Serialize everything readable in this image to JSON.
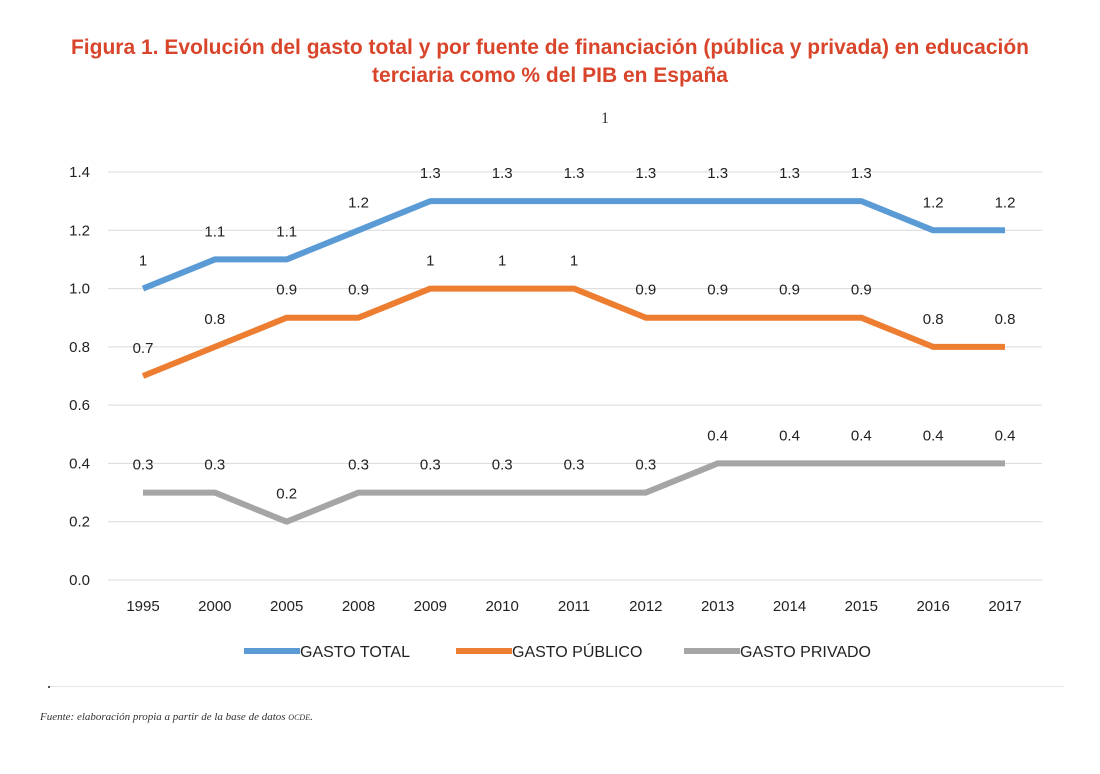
{
  "figure": {
    "title_line1": "Figura 1. Evolución del gasto total y por fuente de financiación (pública y privada) en educación",
    "title_line2": "terciaria como % del PIB en España",
    "stray_mark": "1",
    "source_prefix": "Fuente: elaboración propia a partir de la base de datos ",
    "source_db": "ocde",
    "source_suffix": "."
  },
  "chart_data": {
    "type": "line",
    "categories": [
      "1995",
      "2000",
      "2005",
      "2008",
      "2009",
      "2010",
      "2011",
      "2012",
      "2013",
      "2014",
      "2015",
      "2016",
      "2017"
    ],
    "y_ticks": [
      "0.0",
      "0.2",
      "0.4",
      "0.6",
      "0.8",
      "1.0",
      "1.2",
      "1.4"
    ],
    "ylim": [
      0,
      1.4
    ],
    "grid": true,
    "legend_position": "bottom",
    "series": [
      {
        "name": "GASTO TOTAL",
        "color": "#5b9bd5",
        "values": [
          1.0,
          1.1,
          1.1,
          1.2,
          1.3,
          1.3,
          1.3,
          1.3,
          1.3,
          1.3,
          1.3,
          1.2,
          1.2
        ],
        "labels": [
          "1",
          "1.1",
          "1.1",
          "1.2",
          "1.3",
          "1.3",
          "1.3",
          "1.3",
          "1.3",
          "1.3",
          "1.3",
          "1.2",
          "1.2"
        ]
      },
      {
        "name": "GASTO PÚBLICO",
        "color": "#ed7d31",
        "values": [
          0.7,
          0.8,
          0.9,
          0.9,
          1.0,
          1.0,
          1.0,
          0.9,
          0.9,
          0.9,
          0.9,
          0.8,
          0.8
        ],
        "labels": [
          "0.7",
          "0.8",
          "0.9",
          "0.9",
          "1",
          "1",
          "1",
          "0.9",
          "0.9",
          "0.9",
          "0.9",
          "0.8",
          "0.8"
        ]
      },
      {
        "name": "GASTO PRIVADO",
        "color": "#a5a5a5",
        "values": [
          0.3,
          0.3,
          0.2,
          0.3,
          0.3,
          0.3,
          0.3,
          0.3,
          0.4,
          0.4,
          0.4,
          0.4,
          0.4
        ],
        "labels": [
          "0.3",
          "0.3",
          "0.2",
          "0.3",
          "0.3",
          "0.3",
          "0.3",
          "0.3",
          "0.4",
          "0.4",
          "0.4",
          "0.4",
          "0.4"
        ]
      }
    ]
  }
}
